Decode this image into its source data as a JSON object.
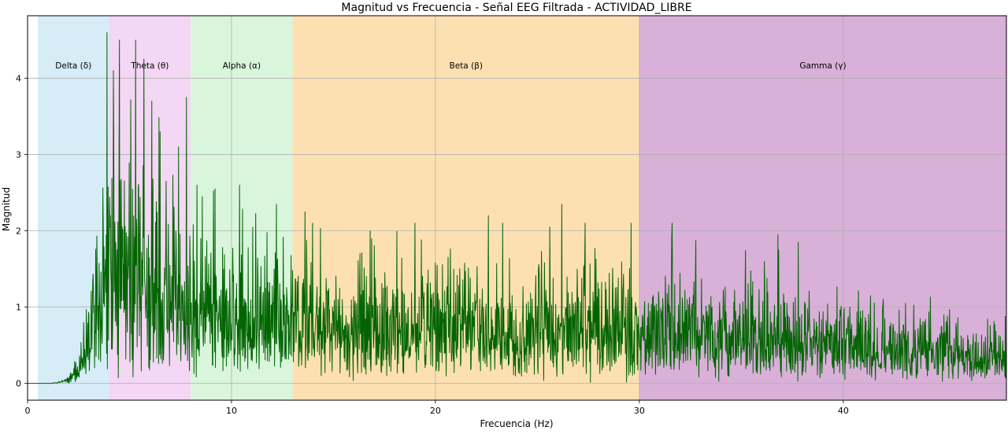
{
  "chart_data": {
    "type": "line",
    "title": "Magnitud vs Frecuencia - Señal EEG Filtrada - ACTIVIDAD_LIBRE",
    "xlabel": "Frecuencia (Hz)",
    "ylabel": "Magnitud",
    "xlim": [
      0,
      48
    ],
    "ylim": [
      -0.22,
      4.82
    ],
    "xticks": [
      0,
      10,
      20,
      30,
      40
    ],
    "yticks": [
      0,
      1,
      2,
      3,
      4
    ],
    "grid": true,
    "line_color": "#006400",
    "bands": [
      {
        "label": "Delta (δ)",
        "range": [
          0.5,
          4
        ],
        "color": "#d6ecf6"
      },
      {
        "label": "Theta (θ)",
        "range": [
          4,
          8
        ],
        "color": "#f4d6f5"
      },
      {
        "label": "Alpha (α)",
        "range": [
          8,
          13
        ],
        "color": "#d9f5dc"
      },
      {
        "label": "Beta (β)",
        "range": [
          13,
          30
        ],
        "color": "#fde0b2"
      },
      {
        "label": "Gamma (γ)",
        "range": [
          30,
          48
        ],
        "color": "#d8b0d8"
      }
    ],
    "series": [
      {
        "x": [
          0,
          0.5,
          1,
          1.5,
          2,
          2.3,
          2.6,
          2.9,
          3.1,
          3.3,
          3.5,
          3.7,
          3.85,
          4,
          4.5,
          5,
          5.5,
          6,
          6.5,
          7,
          7.5,
          8,
          9,
          10,
          11,
          12,
          13,
          14,
          15,
          16,
          17,
          18,
          19,
          20,
          21,
          22,
          23,
          24,
          25,
          26,
          27,
          28,
          29,
          30,
          32,
          34,
          36,
          38,
          40,
          42,
          44,
          46,
          48
        ],
        "mean": [
          0,
          0,
          0,
          0.01,
          0.05,
          0.12,
          0.25,
          0.45,
          0.7,
          1.0,
          1.2,
          1.4,
          1.55,
          1.6,
          1.55,
          1.45,
          1.35,
          1.25,
          1.15,
          1.1,
          1.02,
          0.98,
          0.92,
          0.88,
          0.84,
          0.8,
          0.78,
          0.76,
          0.75,
          0.74,
          0.74,
          0.73,
          0.73,
          0.72,
          0.72,
          0.72,
          0.72,
          0.71,
          0.71,
          0.71,
          0.7,
          0.7,
          0.7,
          0.68,
          0.66,
          0.64,
          0.6,
          0.56,
          0.52,
          0.47,
          0.42,
          0.37,
          0.32
        ],
        "peaks": [
          [
            3.9,
            4.6
          ],
          [
            4.2,
            4.1
          ],
          [
            4.5,
            4.5
          ],
          [
            5.3,
            4.5
          ],
          [
            5.7,
            4.25
          ],
          [
            6.1,
            3.7
          ],
          [
            6.5,
            3.3
          ],
          [
            7.4,
            3.1
          ],
          [
            7.8,
            3.75
          ],
          [
            8.3,
            2.6
          ],
          [
            9.2,
            2.55
          ],
          [
            10.4,
            2.6
          ],
          [
            12.2,
            2.35
          ],
          [
            13.6,
            2.25
          ],
          [
            16.8,
            2.0
          ],
          [
            19.0,
            2.1
          ],
          [
            22.6,
            2.2
          ],
          [
            23.3,
            2.1
          ],
          [
            25.6,
            2.05
          ],
          [
            26.2,
            2.35
          ],
          [
            29.6,
            2.1
          ],
          [
            31.6,
            2.1
          ],
          [
            36.8,
            1.95
          ],
          [
            37.8,
            1.85
          ]
        ]
      }
    ]
  }
}
